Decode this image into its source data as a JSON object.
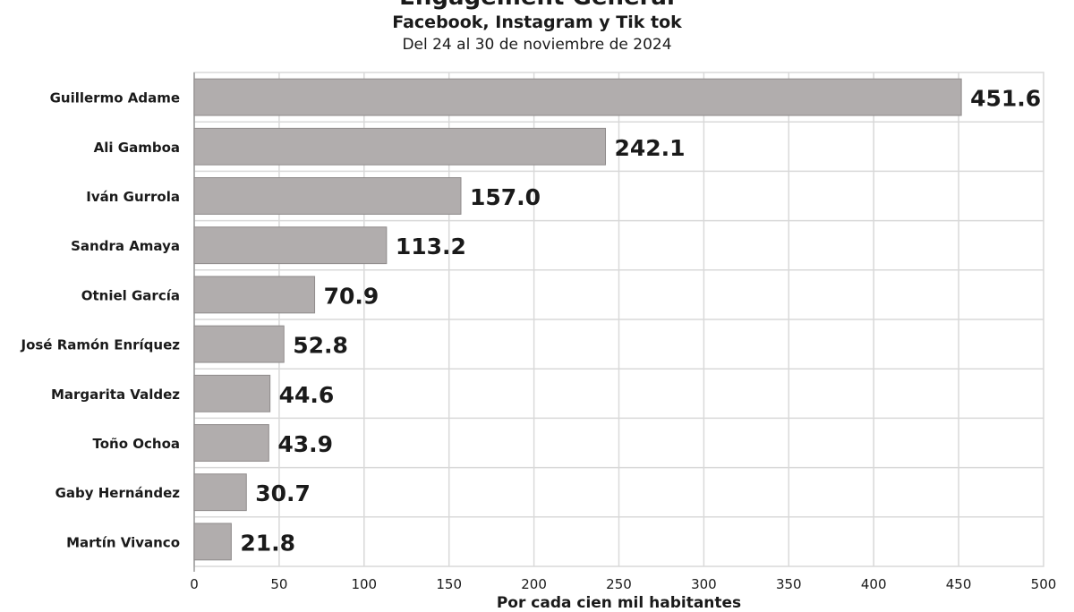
{
  "chart_data": {
    "type": "bar",
    "orientation": "horizontal",
    "title": "Engagement General",
    "subtitle": "Facebook, Instagram y Tik tok",
    "date_range": "Del 24 al 30 de noviembre de 2024",
    "xlabel": "Por cada cien mil habitantes",
    "categories": [
      "Guillermo Adame",
      "Ali Gamboa",
      "Iván Gurrola",
      "Sandra Amaya",
      "Otniel García",
      "José Ramón Enríquez",
      "Margarita Valdez",
      "Toño Ochoa",
      "Gaby Hernández",
      "Martín Vivanco"
    ],
    "values": [
      451.6,
      242.1,
      157.0,
      113.2,
      70.9,
      52.8,
      44.6,
      43.9,
      30.7,
      21.8
    ],
    "value_labels": [
      "451.6",
      "242.1",
      "157.0",
      "113.2",
      "70.9",
      "52.8",
      "44.6",
      "43.9",
      "30.7",
      "21.8"
    ],
    "xlim": [
      0,
      500
    ],
    "xticks": [
      "0",
      "50",
      "100",
      "150",
      "200",
      "250",
      "300",
      "350",
      "400",
      "450",
      "500"
    ],
    "grid": true,
    "bar_color": "#b1adad",
    "bar_border_color": "#8f8b8b",
    "grid_color": "#d9d9d9"
  }
}
